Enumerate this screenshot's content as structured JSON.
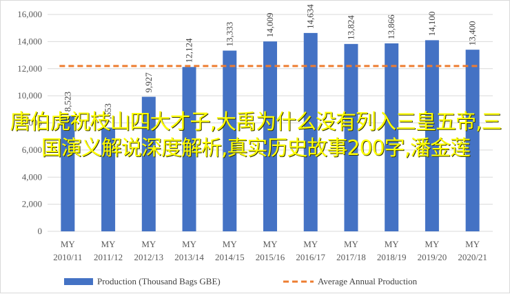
{
  "overlay_title": "唐伯虎祝枝山四大才子,大禹为什么没有列入三皇五帝,三国演义解说深度解析,真实历史故事200字,潘金莲",
  "chart_data": {
    "type": "bar",
    "categories": [
      [
        "MY",
        "2010/11"
      ],
      [
        "MY",
        "2011/12"
      ],
      [
        "MY",
        "2012/13"
      ],
      [
        "MY",
        "2013/14"
      ],
      [
        "MY",
        "2014/15"
      ],
      [
        "MY",
        "2015/16"
      ],
      [
        "MY",
        "2016/17"
      ],
      [
        "MY",
        "2017/18"
      ],
      [
        "MY",
        "2018/19"
      ],
      [
        "MY",
        "2019/20"
      ],
      [
        "MY",
        "2020/21"
      ]
    ],
    "series": [
      {
        "name": "Production (Thousand Bags GBE)",
        "type": "bar",
        "color": "#4472c4",
        "values": [
          8523,
          7653,
          9927,
          12124,
          13333,
          14009,
          14634,
          13824,
          13866,
          14100,
          13400
        ],
        "labels": [
          "8,523",
          "7,653",
          "9,927",
          "12,124",
          "13,333",
          "14,009",
          "14,634",
          "13,824",
          "13,866",
          "14,100",
          "13,400"
        ]
      },
      {
        "name": "Average Annual Production",
        "type": "line",
        "style": "dashed",
        "color": "#ed7d31",
        "value": 12200
      }
    ],
    "ylim": [
      0,
      16000
    ],
    "yticks": [
      0,
      2000,
      4000,
      6000,
      8000,
      10000,
      12000,
      14000,
      16000
    ],
    "ytick_labels": [
      "0",
      "2,000",
      "4,000",
      "6,000",
      "8,000",
      "10,000",
      "12,000",
      "14,000",
      "16,000"
    ],
    "grid": true,
    "legend_position": "bottom"
  }
}
